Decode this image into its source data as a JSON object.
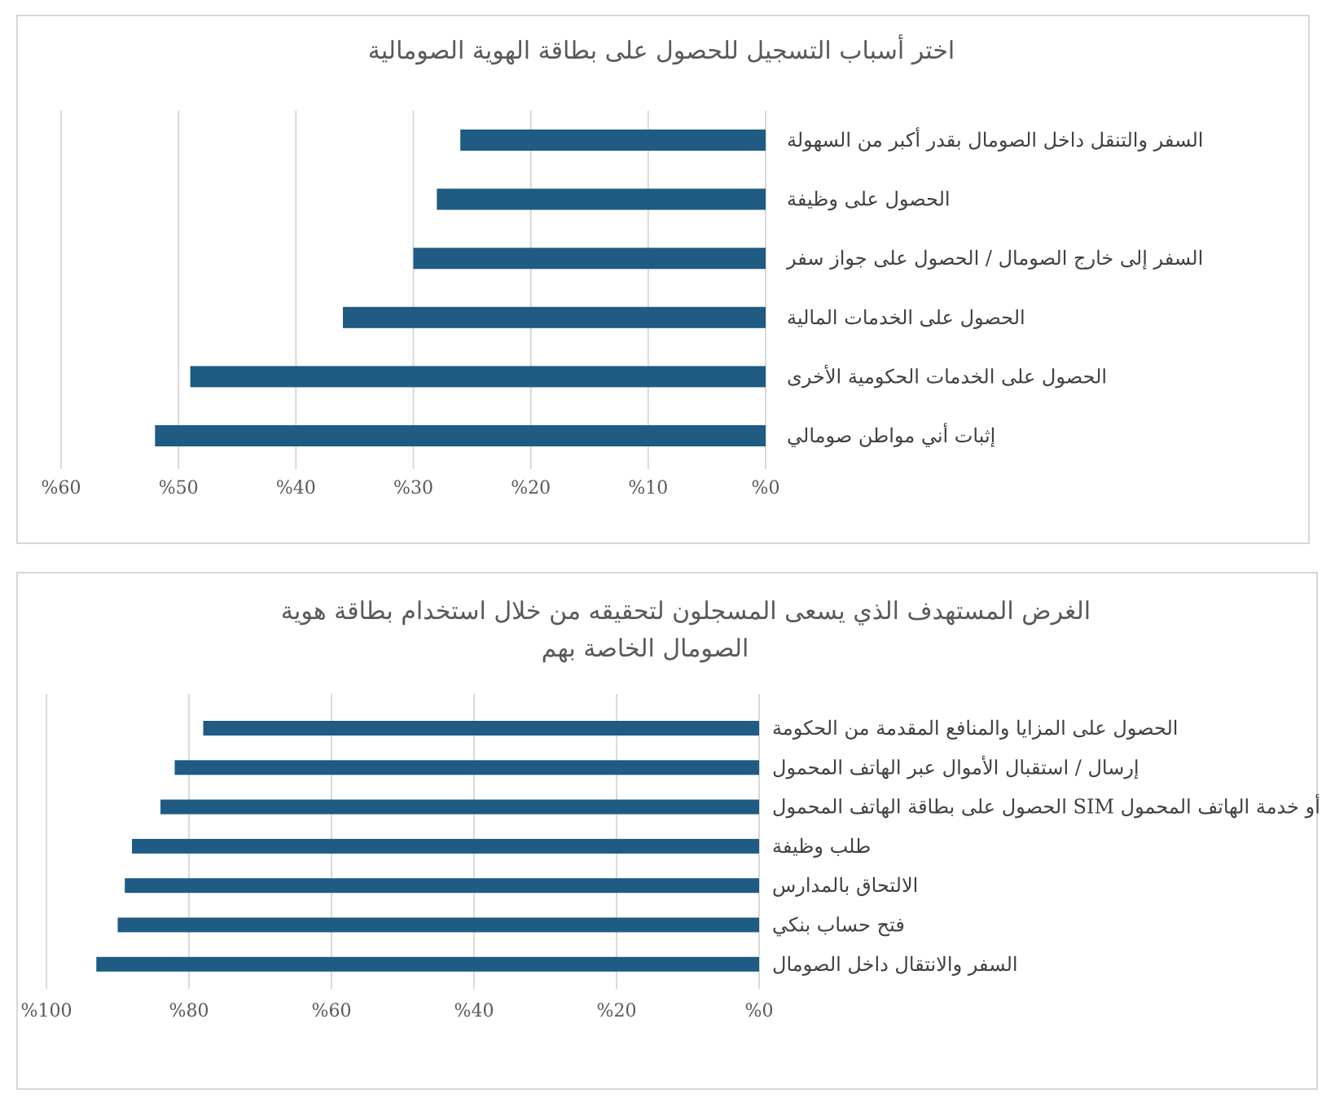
{
  "chart_data": [
    {
      "type": "bar",
      "orientation": "horizontal",
      "title": "اختر أسباب التسجيل للحصول على بطاقة الهوية الصومالية",
      "categories": [
        "السفر والتنقل داخل الصومال بقدر أكبر من السهولة",
        "الحصول على وظيفة",
        "السفر إلى خارج الصومال / الحصول على جواز سفر",
        "الحصول على الخدمات المالية",
        "الحصول على الخدمات الحكومية الأخرى",
        "إثبات أني مواطن صومالي"
      ],
      "values": [
        26,
        28,
        30,
        36,
        49,
        52
      ],
      "xlim": [
        0,
        60
      ],
      "ticks": [
        0,
        10,
        20,
        30,
        40,
        50,
        60
      ],
      "tick_labels": [
        "%0",
        "%10",
        "%20",
        "%30",
        "%40",
        "%50",
        "%60"
      ],
      "grid": true,
      "bar_color": "#1f5b83",
      "grid_color": "#d9d9d9"
    },
    {
      "type": "bar",
      "orientation": "horizontal",
      "title": "الغرض المستهدف الذي يسعى المسجلون لتحقيقه من خلال استخدام بطاقة هوية الصومال الخاصة بهم",
      "title_lines": [
        "الغرض المستهدف الذي يسعى المسجلون لتحقيقه من خلال استخدام بطاقة هوية",
        "الصومال الخاصة بهم"
      ],
      "categories": [
        "الحصول على المزايا والمنافع المقدمة من الحكومة",
        "إرسال / استقبال الأموال عبر الهاتف المحمول",
        "الحصول على بطاقة الهاتف المحمول SIM أو خدمة الهاتف المحمول",
        "طلب وظيفة",
        "الالتحاق بالمدارس",
        "فتح حساب بنكي",
        "السفر والانتقال داخل الصومال"
      ],
      "values": [
        78,
        82,
        84,
        88,
        89,
        90,
        93
      ],
      "xlim": [
        0,
        100
      ],
      "ticks": [
        0,
        20,
        40,
        60,
        80,
        100
      ],
      "tick_labels": [
        "%0",
        "%20",
        "%40",
        "%60",
        "%80",
        "%100"
      ],
      "grid": true,
      "bar_color": "#1f5b83",
      "grid_color": "#d9d9d9"
    }
  ]
}
